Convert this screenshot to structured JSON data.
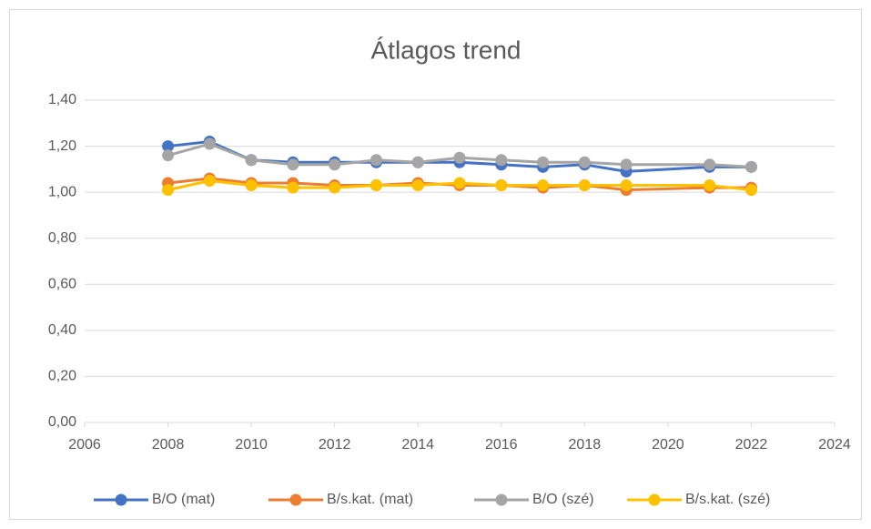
{
  "chart_data": {
    "type": "line",
    "title": "Átlagos trend",
    "x": [
      2008,
      2009,
      2010,
      2011,
      2012,
      2013,
      2014,
      2015,
      2016,
      2017,
      2018,
      2019,
      2021,
      2022
    ],
    "series": [
      {
        "name": "B/O (mat)",
        "color": "#4472c4",
        "values": [
          1.2,
          1.22,
          1.14,
          1.13,
          1.13,
          1.13,
          1.13,
          1.13,
          1.12,
          1.11,
          1.12,
          1.09,
          1.11,
          1.11
        ]
      },
      {
        "name": "B/s.kat. (mat)",
        "color": "#ed7d31",
        "values": [
          1.04,
          1.06,
          1.04,
          1.04,
          1.03,
          1.03,
          1.04,
          1.03,
          1.03,
          1.02,
          1.03,
          1.01,
          1.02,
          1.02
        ]
      },
      {
        "name": "B/O (szé)",
        "color": "#a5a5a5",
        "values": [
          1.16,
          1.21,
          1.14,
          1.12,
          1.12,
          1.14,
          1.13,
          1.15,
          1.14,
          1.13,
          1.13,
          1.12,
          1.12,
          1.11
        ]
      },
      {
        "name": "B/s.kat. (szé)",
        "color": "#ffc000",
        "values": [
          1.01,
          1.05,
          1.03,
          1.02,
          1.02,
          1.03,
          1.03,
          1.04,
          1.03,
          1.03,
          1.03,
          1.03,
          1.03,
          1.01
        ]
      }
    ],
    "xlim": [
      2006,
      2024
    ],
    "xticks": [
      2006,
      2008,
      2010,
      2012,
      2014,
      2016,
      2018,
      2020,
      2022,
      2024
    ],
    "ylim": [
      0,
      1.4
    ],
    "yticks": [
      {
        "value": 0,
        "label": "0,00"
      },
      {
        "value": 0.2,
        "label": "0,20"
      },
      {
        "value": 0.4,
        "label": "0,40"
      },
      {
        "value": 0.6,
        "label": "0,60"
      },
      {
        "value": 0.8,
        "label": "0,80"
      },
      {
        "value": 1.0,
        "label": "1,00"
      },
      {
        "value": 1.2,
        "label": "1,20"
      },
      {
        "value": 1.4,
        "label": "1,40"
      }
    ],
    "grid": true,
    "legend": "bottom"
  }
}
